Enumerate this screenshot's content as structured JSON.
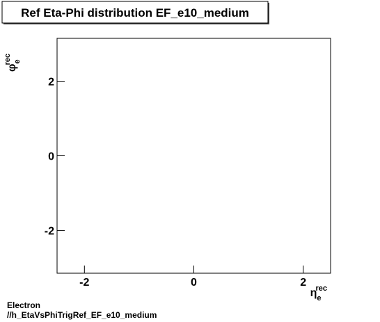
{
  "chart_data": {
    "type": "scatter",
    "title": "Ref Eta-Phi distribution EF_e10_medium",
    "x": [],
    "values": [],
    "x_label": {
      "symbol": "η",
      "sub": "e",
      "sup": "rec"
    },
    "y_label": {
      "symbol": "φ",
      "sub": "e",
      "sup": "rec"
    },
    "xlim": [
      -2.5,
      2.5
    ],
    "xticks": [
      -2,
      0,
      2
    ],
    "ylim": [
      -3.15,
      3.15
    ],
    "yticks": [
      -2,
      0,
      2
    ],
    "footer": [
      "Electron",
      "//h_EtaVsPhiTrigRef_EF_e10_medium"
    ]
  }
}
